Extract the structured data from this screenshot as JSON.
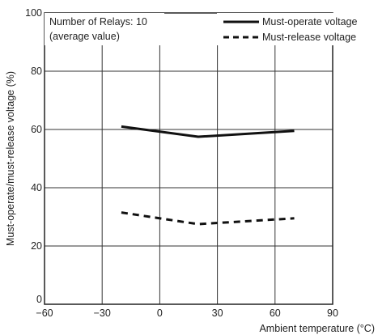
{
  "chart_data": {
    "type": "line",
    "title": "",
    "xlabel": "Ambient temperature (°C)",
    "ylabel": "Must-operate/must-release voltage (%)",
    "xlim": [
      -60,
      90
    ],
    "ylim": [
      0,
      100
    ],
    "x_ticks": [
      -60,
      -30,
      0,
      30,
      60,
      90
    ],
    "y_ticks": [
      0,
      20,
      40,
      60,
      80,
      100
    ],
    "x_tick_labels": [
      "−60",
      "−30",
      "0",
      "30",
      "60",
      "90"
    ],
    "y_tick_labels": [
      "0",
      "20",
      "40",
      "60",
      "80",
      "100"
    ],
    "grid": true,
    "annotation": {
      "line1": "Number of Relays: 10",
      "line2": "(average value)"
    },
    "legend_position": "top-right",
    "series": [
      {
        "name": "Must-operate voltage",
        "style": "solid",
        "color": "#111111",
        "x": [
          -20,
          20,
          70
        ],
        "y": [
          61,
          57.5,
          59.5
        ]
      },
      {
        "name": "Must-release voltage",
        "style": "dashed",
        "color": "#111111",
        "x": [
          -20,
          20,
          70
        ],
        "y": [
          31.5,
          27.5,
          29.5
        ]
      }
    ]
  }
}
